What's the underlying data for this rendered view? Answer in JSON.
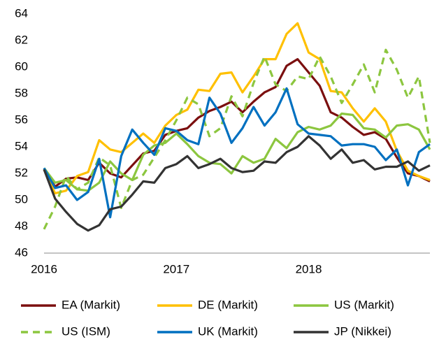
{
  "chart_data": {
    "type": "line",
    "categories": [
      "2016",
      null,
      null,
      null,
      null,
      null,
      null,
      null,
      null,
      null,
      null,
      null,
      "2017",
      null,
      null,
      null,
      null,
      null,
      null,
      null,
      null,
      null,
      null,
      null,
      "2018",
      null,
      null,
      null,
      null,
      null,
      null,
      null,
      null,
      null,
      null,
      null
    ],
    "ylim": [
      46,
      64
    ],
    "yticks": [
      46,
      48,
      50,
      52,
      54,
      56,
      58,
      60,
      62,
      64
    ],
    "series": [
      {
        "name": "EA (Markit)",
        "color": "#7b0f0f",
        "values": [
          52.3,
          51.0,
          51.6,
          51.7,
          51.5,
          52.8,
          52.0,
          51.7,
          52.6,
          53.5,
          53.7,
          54.9,
          55.2,
          55.4,
          56.2,
          56.7,
          57.0,
          57.4,
          56.6,
          57.4,
          58.1,
          58.5,
          60.1,
          60.6,
          59.6,
          58.6,
          56.6,
          56.2,
          55.5,
          54.9,
          55.1,
          54.6,
          53.2,
          52.0,
          51.8,
          51.4
        ]
      },
      {
        "name": "DE (Markit)",
        "color": "#ffc000",
        "values": [
          52.3,
          50.5,
          50.7,
          51.8,
          52.1,
          54.5,
          53.8,
          53.6,
          54.3,
          55.0,
          54.3,
          55.6,
          56.4,
          56.8,
          58.3,
          58.2,
          59.5,
          59.6,
          58.1,
          59.3,
          60.6,
          60.6,
          62.5,
          63.3,
          61.1,
          60.6,
          58.2,
          58.1,
          56.9,
          55.9,
          56.9,
          55.9,
          53.7,
          52.2,
          51.8,
          51.5
        ]
      },
      {
        "name": "US (Markit)",
        "color": "#8cc63f",
        "values": [
          52.4,
          51.3,
          51.5,
          50.8,
          50.7,
          51.3,
          52.9,
          52.0,
          51.5,
          53.4,
          54.1,
          54.3,
          55.0,
          54.2,
          53.3,
          52.8,
          52.7,
          52.0,
          53.3,
          52.8,
          53.1,
          54.6,
          53.9,
          55.1,
          55.5,
          55.3,
          55.6,
          56.5,
          56.4,
          55.4,
          55.3,
          54.7,
          55.6,
          55.7,
          55.3,
          53.8
        ]
      },
      {
        "name": "US (ISM)",
        "color": "#8cc63f",
        "dashed": true,
        "values": [
          47.8,
          49.5,
          51.8,
          50.8,
          51.3,
          53.2,
          52.6,
          49.4,
          51.5,
          51.9,
          53.2,
          54.5,
          56.0,
          57.7,
          57.2,
          54.8,
          55.4,
          57.8,
          56.3,
          58.8,
          60.8,
          58.7,
          58.2,
          59.3,
          59.1,
          60.8,
          59.3,
          57.3,
          58.7,
          60.2,
          58.1,
          61.3,
          59.8,
          57.7,
          59.3,
          54.3
        ]
      },
      {
        "name": "UK (Markit)",
        "color": "#0070c0",
        "values": [
          52.4,
          50.9,
          51.1,
          50.0,
          50.6,
          53.1,
          48.7,
          53.3,
          55.3,
          54.3,
          53.4,
          55.4,
          55.2,
          54.5,
          54.2,
          57.7,
          56.5,
          54.3,
          55.4,
          57.0,
          55.6,
          56.6,
          58.4,
          55.7,
          55.0,
          54.9,
          54.8,
          54.1,
          54.2,
          54.2,
          54.0,
          53.0,
          53.8,
          51.1,
          53.6,
          54.2
        ]
      },
      {
        "name": "JP (Nikkei)",
        "color": "#333333",
        "values": [
          52.3,
          50.1,
          49.1,
          48.2,
          47.7,
          48.1,
          49.3,
          49.5,
          50.4,
          51.4,
          51.3,
          52.4,
          52.7,
          53.3,
          52.4,
          52.7,
          53.1,
          52.4,
          52.1,
          52.2,
          52.9,
          52.8,
          53.6,
          54.0,
          54.8,
          54.1,
          53.1,
          53.8,
          52.8,
          53.0,
          52.3,
          52.5,
          52.5,
          52.9,
          52.2,
          52.6
        ]
      }
    ]
  }
}
